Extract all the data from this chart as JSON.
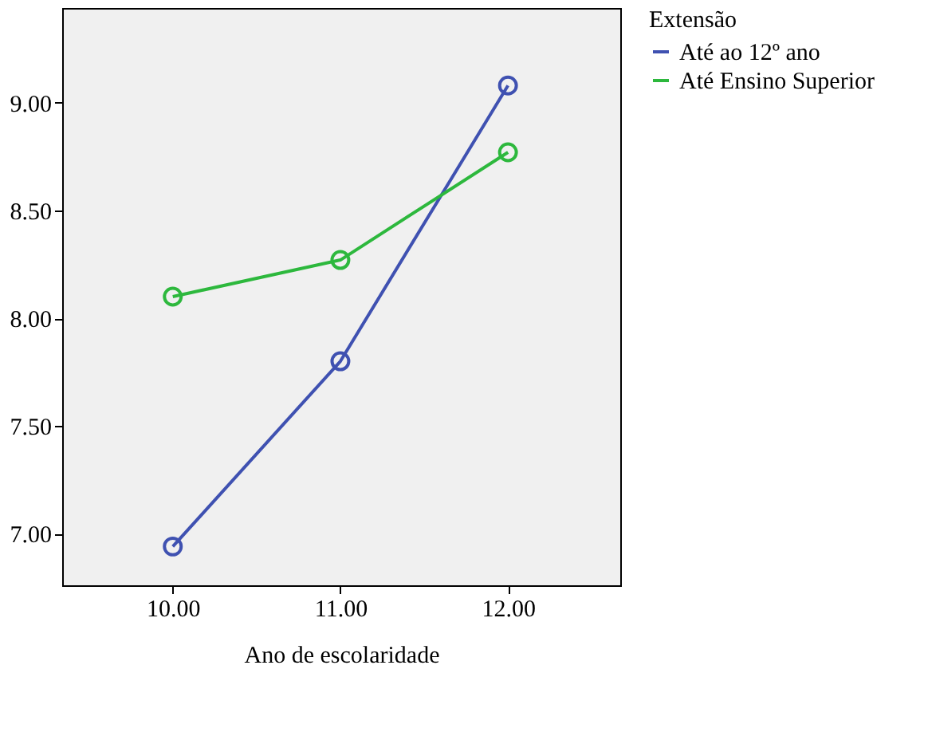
{
  "chart_data": {
    "type": "line",
    "xlabel": "Ano de escolaridade",
    "legend_title": "Extensão",
    "x": [
      10,
      11,
      12
    ],
    "series": [
      {
        "name": "Até ao 12º ano",
        "color": "#3f51b1",
        "values": [
          6.94,
          7.8,
          9.08
        ]
      },
      {
        "name": "Até Ensino Superior",
        "color": "#2db83d",
        "values": [
          8.1,
          8.27,
          8.77
        ]
      }
    ],
    "xlim": [
      9.34,
      12.67
    ],
    "xticks": [
      {
        "value": 10,
        "label": "10.00"
      },
      {
        "value": 11,
        "label": "11.00"
      },
      {
        "value": 12,
        "label": "12.00"
      }
    ],
    "ylim": [
      6.76,
      9.44
    ],
    "yticks": [
      {
        "value": 7,
        "label": "7.00"
      },
      {
        "value": 7.5,
        "label": "7.50"
      },
      {
        "value": 8,
        "label": "8.00"
      },
      {
        "value": 8.5,
        "label": "8.50"
      },
      {
        "value": 9,
        "label": "9.00"
      }
    ],
    "grid": false,
    "legend": "top right",
    "marker": "circle",
    "line_style": "solid"
  }
}
